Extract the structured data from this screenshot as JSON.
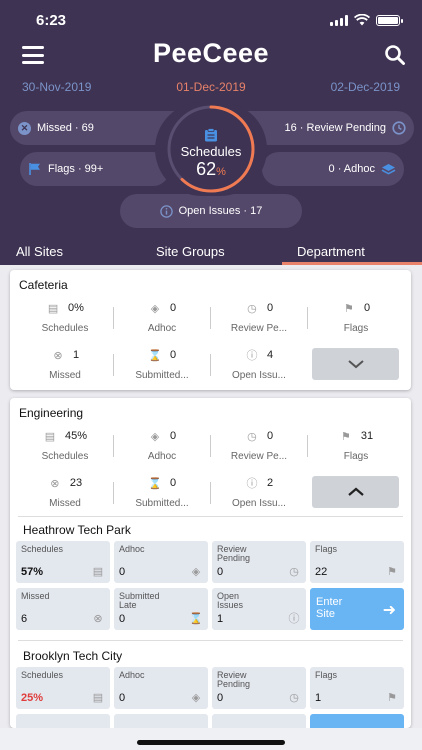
{
  "status": {
    "time": "6:23"
  },
  "header": {
    "title": "PeeCeee"
  },
  "dates": {
    "prev": "30-Nov-2019",
    "current": "01-Dec-2019",
    "next": "02-Dec-2019"
  },
  "summary": {
    "missed": "Missed · 69",
    "review": "16 · Review Pending",
    "flags": "Flags · 99+",
    "adhoc": "0 · Adhoc",
    "open": "Open Issues · 17",
    "ring_label": "Schedules",
    "ring_value": "62",
    "ring_unit": "%",
    "ring_progress": 0.62
  },
  "tabs": [
    "All Sites",
    "Site Groups",
    "Department"
  ],
  "cafeteria": {
    "title": "Cafeteria",
    "schedules": "0%",
    "schedules_lbl": "Schedules",
    "adhoc": "0",
    "adhoc_lbl": "Adhoc",
    "review": "0",
    "review_lbl": "Review Pe...",
    "flags": "0",
    "flags_lbl": "Flags",
    "missed": "1",
    "missed_lbl": "Missed",
    "submitted": "0",
    "submitted_lbl": "Submitted...",
    "open": "4",
    "open_lbl": "Open Issu..."
  },
  "engineering": {
    "title": "Engineering",
    "schedules": "45%",
    "schedules_lbl": "Schedules",
    "adhoc": "0",
    "adhoc_lbl": "Adhoc",
    "review": "0",
    "review_lbl": "Review Pe...",
    "flags": "31",
    "flags_lbl": "Flags",
    "missed": "23",
    "missed_lbl": "Missed",
    "submitted": "0",
    "submitted_lbl": "Submitted...",
    "open": "2",
    "open_lbl": "Open Issu..."
  },
  "site1": {
    "title": "Heathrow  Tech Park",
    "schedules_lbl": "Schedules",
    "schedules": "57%",
    "adhoc_lbl": "Adhoc",
    "adhoc": "0",
    "review_lbl1": "Review",
    "review_lbl2": "Pending",
    "review": "0",
    "flags_lbl": "Flags",
    "flags": "22",
    "missed_lbl": "Missed",
    "missed": "6",
    "sublate_lbl1": "Submitted",
    "sublate_lbl2": "Late",
    "sublate": "0",
    "open_lbl1": "Open",
    "open_lbl2": "Issues",
    "open": "1",
    "enter1": "Enter",
    "enter2": "Site"
  },
  "site2": {
    "title": "Brooklyn Tech City",
    "schedules_lbl": "Schedules",
    "schedules": "25%",
    "adhoc_lbl": "Adhoc",
    "adhoc": "0",
    "review_lbl1": "Review",
    "review_lbl2": "Pending",
    "review": "0",
    "flags_lbl": "Flags",
    "flags": "1"
  },
  "colors": {
    "header_bg": "#3e3352",
    "accent": "#e8826a",
    "link_blue": "#7b93c9",
    "enter_site": "#69b4f3",
    "low_pct": "#e03c3c"
  }
}
